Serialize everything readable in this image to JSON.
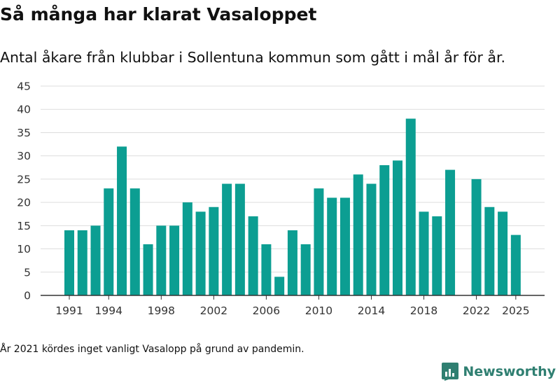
{
  "title": "Så många har klarat Vasaloppet",
  "subtitle": "Antal åkare från klubbar i Sollentuna kommun som gått i mål år för år.",
  "note": "År 2021 kördes inget vanligt Vasalopp på grund av pandemin.",
  "brand": {
    "name": "Newsworthy",
    "icon": "newsworthy-logo-icon"
  },
  "colors": {
    "bar": "#0c9e92",
    "grid": "#dddddd",
    "axis": "#333333",
    "brand": "#2f7f71"
  },
  "chart_data": {
    "type": "bar",
    "title": "Så många har klarat Vasaloppet",
    "xlabel": "",
    "ylabel": "",
    "ylim": [
      0,
      45
    ],
    "yticks": [
      0,
      5,
      10,
      15,
      20,
      25,
      30,
      35,
      40,
      45
    ],
    "grid": true,
    "categories": [
      1991,
      1992,
      1993,
      1994,
      1995,
      1996,
      1997,
      1998,
      1999,
      2000,
      2001,
      2002,
      2003,
      2004,
      2005,
      2006,
      2007,
      2008,
      2009,
      2010,
      2011,
      2012,
      2013,
      2014,
      2015,
      2016,
      2017,
      2018,
      2019,
      2020,
      2021,
      2022,
      2023,
      2024,
      2025
    ],
    "values": [
      14,
      14,
      15,
      23,
      32,
      23,
      11,
      15,
      15,
      20,
      18,
      19,
      24,
      24,
      17,
      11,
      4,
      14,
      11,
      23,
      21,
      21,
      26,
      24,
      28,
      29,
      38,
      18,
      17,
      27,
      null,
      25,
      19,
      18,
      13
    ],
    "xticks": [
      "1991",
      "1994",
      "1998",
      "2002",
      "2006",
      "2010",
      "2014",
      "2018",
      "2022",
      "2025"
    ]
  }
}
